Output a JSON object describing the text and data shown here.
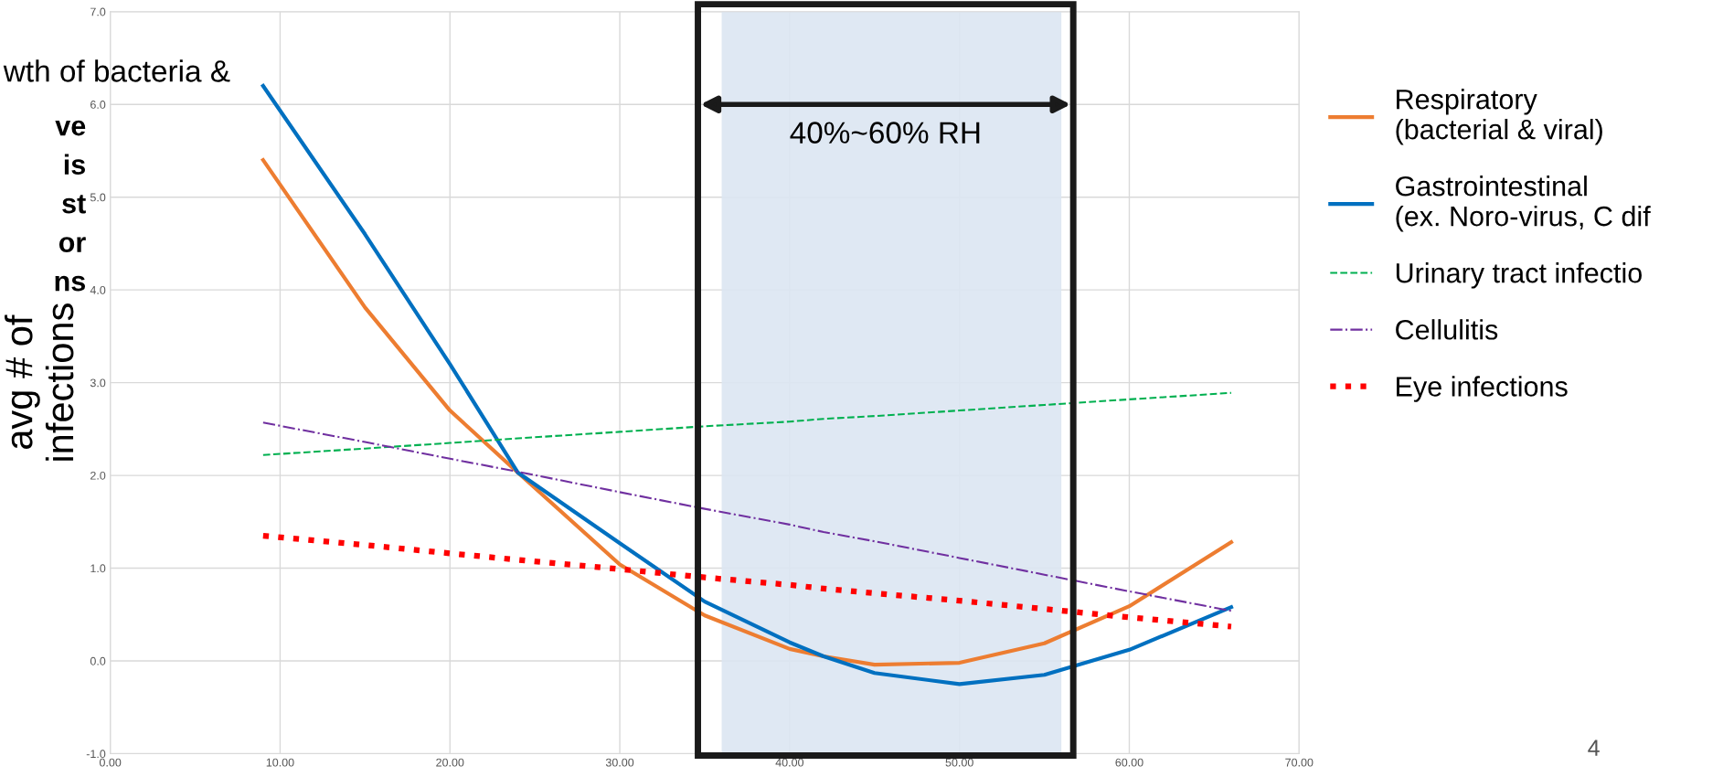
{
  "chart_data": {
    "type": "line",
    "ylabel": "avg # of\ninfections",
    "x": [
      9,
      15,
      20,
      24,
      30,
      35,
      40,
      42,
      45,
      50,
      55,
      60,
      66
    ],
    "series": [
      {
        "name": "Respiratory\n(bacterial & viral)",
        "color": "#ed7d31",
        "line_style": "solid",
        "values": [
          5.4,
          3.81,
          2.7,
          2.03,
          1.04,
          0.49,
          0.13,
          0.05,
          -0.04,
          -0.02,
          0.19,
          0.59,
          1.28
        ]
      },
      {
        "name": "Gastrointestinal\n(ex. Noro-virus, C dif",
        "color": "#0070c0",
        "line_style": "solid",
        "values": [
          6.2,
          4.6,
          3.2,
          2.03,
          1.27,
          0.64,
          0.2,
          0.05,
          -0.13,
          -0.25,
          -0.15,
          0.12,
          0.58
        ]
      },
      {
        "name": "Urinary tract infectio",
        "color": "#00b050",
        "line_style": "dashed",
        "values": [
          2.22,
          2.29,
          2.35,
          2.4,
          2.47,
          2.53,
          2.58,
          2.61,
          2.64,
          2.7,
          2.76,
          2.82,
          2.89
        ]
      },
      {
        "name": "Cellulitis",
        "color": "#7030a0",
        "line_style": "dashdot",
        "values": [
          2.57,
          2.36,
          2.18,
          2.04,
          1.82,
          1.64,
          1.47,
          1.39,
          1.29,
          1.11,
          0.93,
          0.75,
          0.54
        ]
      },
      {
        "name": "Eye infections",
        "color": "#ff0000",
        "line_style": "dotted",
        "values": [
          1.35,
          1.25,
          1.16,
          1.09,
          0.99,
          0.9,
          0.82,
          0.78,
          0.73,
          0.65,
          0.56,
          0.47,
          0.37
        ]
      }
    ],
    "xlim": [
      0,
      70
    ],
    "xticks": [
      {
        "value": 0,
        "label": "0.00"
      },
      {
        "value": 10,
        "label": "10.00"
      },
      {
        "value": 20,
        "label": "20.00"
      },
      {
        "value": 30,
        "label": "30.00"
      },
      {
        "value": 40,
        "label": "40.00"
      },
      {
        "value": 50,
        "label": "50.00"
      },
      {
        "value": 60,
        "label": "60.00"
      },
      {
        "value": 70,
        "label": "70.00"
      }
    ],
    "ylim": [
      -1,
      7
    ],
    "yticks": [
      {
        "value": -1,
        "label": "-1.0"
      },
      {
        "value": 0,
        "label": "0.0"
      },
      {
        "value": 1,
        "label": "1.0"
      },
      {
        "value": 2,
        "label": "2.0"
      },
      {
        "value": 3,
        "label": "3.0"
      },
      {
        "value": 4,
        "label": "4.0"
      },
      {
        "value": 5,
        "label": "5.0"
      },
      {
        "value": 6,
        "label": "6.0"
      },
      {
        "value": 7,
        "label": "7.0"
      }
    ],
    "bands": [
      {
        "axis": "x",
        "from": 36,
        "to": 56,
        "label": "40%~60% RH",
        "color": "#dce6f2"
      }
    ],
    "annotations": [
      "wth of bacteria &",
      "ve",
      "is",
      "st",
      "or",
      "ns",
      "4"
    ],
    "grid": true,
    "legend": "right",
    "marker": "none"
  }
}
